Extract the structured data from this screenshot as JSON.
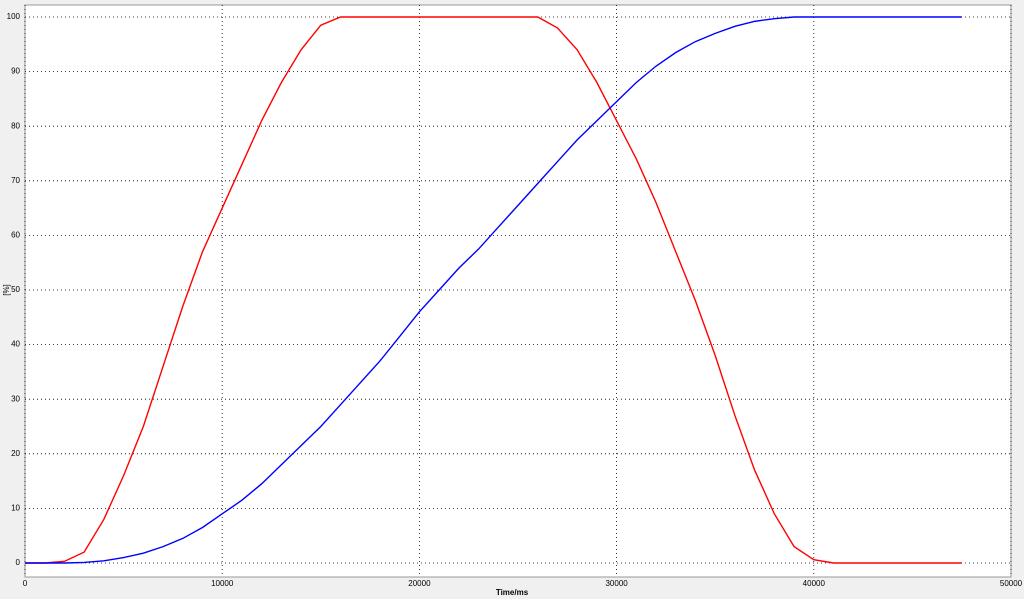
{
  "chart_data": {
    "type": "line",
    "xlabel": "Time/ms",
    "ylabel": "[%]",
    "x": [
      0,
      1000,
      2000,
      3000,
      4000,
      5000,
      6000,
      7000,
      8000,
      9000,
      10000,
      11000,
      12000,
      13000,
      14000,
      15000,
      16000,
      17000,
      18000,
      19000,
      20000,
      21000,
      22000,
      23000,
      24000,
      25000,
      26000,
      27000,
      28000,
      29000,
      30000,
      31000,
      32000,
      33000,
      34000,
      35000,
      36000,
      37000,
      38000,
      39000,
      40000,
      41000,
      42000,
      43000,
      44000,
      45000,
      46000,
      47000,
      47500
    ],
    "series": [
      {
        "color": "#ff0000",
        "values": [
          0,
          0,
          0.3,
          2,
          8,
          16,
          25,
          36,
          47,
          57,
          65,
          73,
          81,
          88,
          94,
          98.5,
          100,
          100,
          100,
          100,
          100,
          100,
          100,
          100,
          100,
          100,
          100,
          98,
          94,
          88,
          81,
          74,
          66,
          57,
          48,
          38,
          27,
          17,
          9,
          3,
          0.6,
          0,
          0,
          0,
          0,
          0,
          0,
          0,
          0
        ]
      },
      {
        "color": "#0000ff",
        "values": [
          0,
          0,
          0,
          0.1,
          0.4,
          1,
          1.8,
          3,
          4.5,
          6.5,
          9,
          11.5,
          14.5,
          18,
          21.5,
          25,
          29,
          33,
          37,
          41.5,
          46,
          50,
          54,
          57.5,
          61.5,
          65.5,
          69.5,
          73.5,
          77.5,
          81,
          84.5,
          88,
          91,
          93.5,
          95.5,
          97,
          98.3,
          99.2,
          99.7,
          100,
          100,
          100,
          100,
          100,
          100,
          100,
          100,
          100,
          100
        ]
      }
    ],
    "xlim": [
      0,
      50000
    ],
    "xticks": [
      0,
      10000,
      20000,
      30000,
      40000,
      50000
    ],
    "ylim": [
      0,
      100
    ],
    "yticks": [
      0,
      10,
      20,
      30,
      40,
      50,
      60,
      70,
      80,
      90,
      100
    ],
    "grid": true
  }
}
